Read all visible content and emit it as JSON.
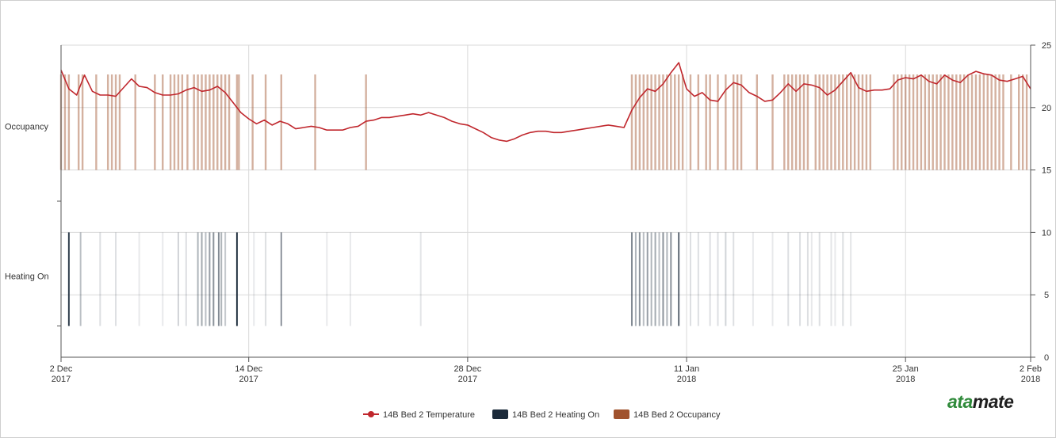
{
  "chart_data": {
    "type": "line",
    "x_axis": {
      "type": "date",
      "range": [
        "2017-12-02",
        "2018-02-02"
      ],
      "ticks": [
        {
          "date": "2017-12-02",
          "label_line1": "2 Dec",
          "label_line2": "2017"
        },
        {
          "date": "2017-12-14",
          "label_line1": "14 Dec",
          "label_line2": "2017"
        },
        {
          "date": "2017-12-28",
          "label_line1": "28 Dec",
          "label_line2": "2017"
        },
        {
          "date": "2018-01-11",
          "label_line1": "11 Jan",
          "label_line2": "2018"
        },
        {
          "date": "2018-01-25",
          "label_line1": "25 Jan",
          "label_line2": "2018"
        },
        {
          "date": "2018-02-02",
          "label_line1": "2 Feb",
          "label_line2": "2018"
        }
      ]
    },
    "y_axis_right": {
      "range": [
        0,
        25
      ],
      "ticks": [
        "0",
        "5",
        "10",
        "15",
        "20",
        "25"
      ]
    },
    "y_axis_left": {
      "categories": [
        "Occupancy",
        "Heating On"
      ]
    },
    "grid": true,
    "legend_position": "bottom-center",
    "series": [
      {
        "name": "14B Bed 2 Temperature",
        "kind": "line",
        "color": "#c0272d",
        "points": [
          [
            "2017-12-02",
            23.0
          ],
          [
            "2017-12-02T12",
            21.5
          ],
          [
            "2017-12-03",
            21.0
          ],
          [
            "2017-12-03T12",
            22.6
          ],
          [
            "2017-12-04",
            21.3
          ],
          [
            "2017-12-04T12",
            21.0
          ],
          [
            "2017-12-05",
            21.0
          ],
          [
            "2017-12-05T12",
            20.9
          ],
          [
            "2017-12-06",
            21.6
          ],
          [
            "2017-12-06T12",
            22.3
          ],
          [
            "2017-12-07",
            21.7
          ],
          [
            "2017-12-07T12",
            21.6
          ],
          [
            "2017-12-08",
            21.2
          ],
          [
            "2017-12-08T12",
            21.0
          ],
          [
            "2017-12-09",
            21.0
          ],
          [
            "2017-12-09T12",
            21.1
          ],
          [
            "2017-12-10",
            21.4
          ],
          [
            "2017-12-10T12",
            21.6
          ],
          [
            "2017-12-11",
            21.3
          ],
          [
            "2017-12-11T12",
            21.4
          ],
          [
            "2017-12-12",
            21.7
          ],
          [
            "2017-12-12T12",
            21.2
          ],
          [
            "2017-12-13",
            20.4
          ],
          [
            "2017-12-13T12",
            19.6
          ],
          [
            "2017-12-14",
            19.1
          ],
          [
            "2017-12-14T12",
            18.7
          ],
          [
            "2017-12-15",
            19.0
          ],
          [
            "2017-12-15T12",
            18.6
          ],
          [
            "2017-12-16",
            18.9
          ],
          [
            "2017-12-16T12",
            18.7
          ],
          [
            "2017-12-17",
            18.3
          ],
          [
            "2017-12-17T12",
            18.4
          ],
          [
            "2017-12-18",
            18.5
          ],
          [
            "2017-12-18T12",
            18.4
          ],
          [
            "2017-12-19",
            18.2
          ],
          [
            "2017-12-19T12",
            18.2
          ],
          [
            "2017-12-20",
            18.2
          ],
          [
            "2017-12-20T12",
            18.4
          ],
          [
            "2017-12-21",
            18.5
          ],
          [
            "2017-12-21T12",
            18.9
          ],
          [
            "2017-12-22",
            19.0
          ],
          [
            "2017-12-22T12",
            19.2
          ],
          [
            "2017-12-23",
            19.2
          ],
          [
            "2017-12-23T12",
            19.3
          ],
          [
            "2017-12-24",
            19.4
          ],
          [
            "2017-12-24T12",
            19.5
          ],
          [
            "2017-12-25",
            19.4
          ],
          [
            "2017-12-25T12",
            19.6
          ],
          [
            "2017-12-26",
            19.4
          ],
          [
            "2017-12-26T12",
            19.2
          ],
          [
            "2017-12-27",
            18.9
          ],
          [
            "2017-12-27T12",
            18.7
          ],
          [
            "2017-12-28",
            18.6
          ],
          [
            "2017-12-28T12",
            18.3
          ],
          [
            "2017-12-29",
            18.0
          ],
          [
            "2017-12-29T12",
            17.6
          ],
          [
            "2017-12-30",
            17.4
          ],
          [
            "2017-12-30T12",
            17.3
          ],
          [
            "2017-12-31",
            17.5
          ],
          [
            "2017-12-31T12",
            17.8
          ],
          [
            "2018-01-01",
            18.0
          ],
          [
            "2018-01-01T12",
            18.1
          ],
          [
            "2018-01-02",
            18.1
          ],
          [
            "2018-01-02T12",
            18.0
          ],
          [
            "2018-01-03",
            18.0
          ],
          [
            "2018-01-03T12",
            18.1
          ],
          [
            "2018-01-04",
            18.2
          ],
          [
            "2018-01-04T12",
            18.3
          ],
          [
            "2018-01-05",
            18.4
          ],
          [
            "2018-01-05T12",
            18.5
          ],
          [
            "2018-01-06",
            18.6
          ],
          [
            "2018-01-06T12",
            18.5
          ],
          [
            "2018-01-07",
            18.4
          ],
          [
            "2018-01-07T12",
            19.8
          ],
          [
            "2018-01-08",
            20.8
          ],
          [
            "2018-01-08T12",
            21.5
          ],
          [
            "2018-01-09",
            21.3
          ],
          [
            "2018-01-09T12",
            21.9
          ],
          [
            "2018-01-10",
            22.8
          ],
          [
            "2018-01-10T12",
            23.6
          ],
          [
            "2018-01-11",
            21.5
          ],
          [
            "2018-01-11T12",
            20.9
          ],
          [
            "2018-01-12",
            21.2
          ],
          [
            "2018-01-12T12",
            20.6
          ],
          [
            "2018-01-13",
            20.5
          ],
          [
            "2018-01-13T12",
            21.4
          ],
          [
            "2018-01-14",
            22.0
          ],
          [
            "2018-01-14T12",
            21.8
          ],
          [
            "2018-01-15",
            21.2
          ],
          [
            "2018-01-15T12",
            20.9
          ],
          [
            "2018-01-16",
            20.5
          ],
          [
            "2018-01-16T12",
            20.6
          ],
          [
            "2018-01-17",
            21.2
          ],
          [
            "2018-01-17T12",
            21.9
          ],
          [
            "2018-01-18",
            21.3
          ],
          [
            "2018-01-18T12",
            21.9
          ],
          [
            "2018-01-19",
            21.8
          ],
          [
            "2018-01-19T12",
            21.6
          ],
          [
            "2018-01-20",
            21.0
          ],
          [
            "2018-01-20T12",
            21.4
          ],
          [
            "2018-01-21",
            22.1
          ],
          [
            "2018-01-21T12",
            22.8
          ],
          [
            "2018-01-22",
            21.6
          ],
          [
            "2018-01-22T12",
            21.3
          ],
          [
            "2018-01-23",
            21.4
          ],
          [
            "2018-01-23T12",
            21.4
          ],
          [
            "2018-01-24",
            21.5
          ],
          [
            "2018-01-24T12",
            22.2
          ],
          [
            "2018-01-25",
            22.4
          ],
          [
            "2018-01-25T12",
            22.3
          ],
          [
            "2018-01-26",
            22.6
          ],
          [
            "2018-01-26T12",
            22.1
          ],
          [
            "2018-01-27",
            21.9
          ],
          [
            "2018-01-27T12",
            22.6
          ],
          [
            "2018-01-28",
            22.2
          ],
          [
            "2018-01-28T12",
            22.0
          ],
          [
            "2018-01-29",
            22.6
          ],
          [
            "2018-01-29T12",
            22.9
          ],
          [
            "2018-01-30",
            22.7
          ],
          [
            "2018-01-30T12",
            22.6
          ],
          [
            "2018-01-31",
            22.2
          ],
          [
            "2018-01-31T12",
            22.1
          ],
          [
            "2018-02-01",
            22.3
          ],
          [
            "2018-02-01T12",
            22.5
          ],
          [
            "2018-02-02",
            21.5
          ]
        ]
      },
      {
        "name": "14B Bed 2 Heating On",
        "kind": "event-lines",
        "color": "#1b2a3a",
        "events": [
          {
            "date": "2017-12-02T12",
            "strength": 0.9
          },
          {
            "date": "2017-12-03T06",
            "strength": 0.3
          },
          {
            "date": "2017-12-04T12",
            "strength": 0.15
          },
          {
            "date": "2017-12-05T12",
            "strength": 0.15
          },
          {
            "date": "2017-12-07",
            "strength": 0.1
          },
          {
            "date": "2017-12-08T12",
            "strength": 0.1
          },
          {
            "date": "2017-12-09T12",
            "strength": 0.2
          },
          {
            "date": "2017-12-10",
            "strength": 0.15
          },
          {
            "date": "2017-12-10T18",
            "strength": 0.35
          },
          {
            "date": "2017-12-11",
            "strength": 0.4
          },
          {
            "date": "2017-12-11T06",
            "strength": 0.3
          },
          {
            "date": "2017-12-11T12",
            "strength": 0.45
          },
          {
            "date": "2017-12-11T18",
            "strength": 0.5
          },
          {
            "date": "2017-12-12T02",
            "strength": 0.55
          },
          {
            "date": "2017-12-12T06",
            "strength": 0.35
          },
          {
            "date": "2017-12-12T12",
            "strength": 0.25
          },
          {
            "date": "2017-12-13T06",
            "strength": 0.95
          },
          {
            "date": "2017-12-14T08",
            "strength": 0.1
          },
          {
            "date": "2017-12-15T02",
            "strength": 0.15
          },
          {
            "date": "2017-12-16T02",
            "strength": 0.5
          },
          {
            "date": "2017-12-19",
            "strength": 0.1
          },
          {
            "date": "2017-12-20T12",
            "strength": 0.1
          },
          {
            "date": "2017-12-25",
            "strength": 0.12
          },
          {
            "date": "2018-01-07T12",
            "strength": 0.55
          },
          {
            "date": "2018-01-07T18",
            "strength": 0.35
          },
          {
            "date": "2018-01-08",
            "strength": 0.5
          },
          {
            "date": "2018-01-08T06",
            "strength": 0.3
          },
          {
            "date": "2018-01-08T12",
            "strength": 0.45
          },
          {
            "date": "2018-01-08T18",
            "strength": 0.35
          },
          {
            "date": "2018-01-09",
            "strength": 0.4
          },
          {
            "date": "2018-01-09T06",
            "strength": 0.3
          },
          {
            "date": "2018-01-09T12",
            "strength": 0.5
          },
          {
            "date": "2018-01-09T18",
            "strength": 0.35
          },
          {
            "date": "2018-01-10",
            "strength": 0.5
          },
          {
            "date": "2018-01-10T12",
            "strength": 0.7
          },
          {
            "date": "2018-01-11T06",
            "strength": 0.15
          },
          {
            "date": "2018-01-11T18",
            "strength": 0.15
          },
          {
            "date": "2018-01-12T12",
            "strength": 0.15
          },
          {
            "date": "2018-01-13",
            "strength": 0.15
          },
          {
            "date": "2018-01-13T12",
            "strength": 0.2
          },
          {
            "date": "2018-01-14",
            "strength": 0.15
          },
          {
            "date": "2018-01-15T06",
            "strength": 0.1
          },
          {
            "date": "2018-01-16T12",
            "strength": 0.1
          },
          {
            "date": "2018-01-17T12",
            "strength": 0.15
          },
          {
            "date": "2018-01-18T06",
            "strength": 0.15
          },
          {
            "date": "2018-01-18T18",
            "strength": 0.15
          },
          {
            "date": "2018-01-19",
            "strength": 0.1
          },
          {
            "date": "2018-01-19T12",
            "strength": 0.15
          },
          {
            "date": "2018-01-20T06",
            "strength": 0.12
          },
          {
            "date": "2018-01-20T12",
            "strength": 0.1
          },
          {
            "date": "2018-01-21",
            "strength": 0.15
          },
          {
            "date": "2018-01-21T12",
            "strength": 0.12
          }
        ]
      },
      {
        "name": "14B Bed 2 Occupancy",
        "kind": "event-lines",
        "color": "#a0522d",
        "events": [
          "2017-12-02",
          "2017-12-02T06",
          "2017-12-02T12",
          "2017-12-03T03",
          "2017-12-03T09",
          "2017-12-04T06",
          "2017-12-05",
          "2017-12-05T06",
          "2017-12-05T12",
          "2017-12-05T18",
          "2017-12-06T18",
          "2017-12-08",
          "2017-12-08T12",
          "2017-12-09",
          "2017-12-09T06",
          "2017-12-09T12",
          "2017-12-09T18",
          "2017-12-10T02",
          "2017-12-10T12",
          "2017-12-10T18",
          "2017-12-11",
          "2017-12-11T06",
          "2017-12-11T12",
          "2017-12-11T18",
          "2017-12-12",
          "2017-12-12T06",
          "2017-12-12T12",
          "2017-12-12T18",
          "2017-12-13T06",
          "2017-12-13T09",
          "2017-12-14T06",
          "2017-12-15T02",
          "2017-12-16T02",
          "2017-12-18T06",
          "2017-12-21T12",
          "2018-01-07T12",
          "2018-01-07T18",
          "2018-01-08",
          "2018-01-08T06",
          "2018-01-08T12",
          "2018-01-08T18",
          "2018-01-09",
          "2018-01-09T06",
          "2018-01-09T12",
          "2018-01-09T18",
          "2018-01-10",
          "2018-01-10T06",
          "2018-01-10T12",
          "2018-01-10T18",
          "2018-01-11T06",
          "2018-01-11T18",
          "2018-01-12T06",
          "2018-01-12T12",
          "2018-01-13",
          "2018-01-13T12",
          "2018-01-14",
          "2018-01-14T06",
          "2018-01-14T12",
          "2018-01-15T12",
          "2018-01-16T12",
          "2018-01-17T06",
          "2018-01-17T12",
          "2018-01-17T18",
          "2018-01-18",
          "2018-01-18T06",
          "2018-01-18T12",
          "2018-01-18T18",
          "2018-01-19T06",
          "2018-01-19T12",
          "2018-01-19T18",
          "2018-01-20",
          "2018-01-20T06",
          "2018-01-20T12",
          "2018-01-20T18",
          "2018-01-21",
          "2018-01-21T06",
          "2018-01-21T12",
          "2018-01-21T18",
          "2018-01-22",
          "2018-01-22T06",
          "2018-01-22T12",
          "2018-01-22T18",
          "2018-01-24T06",
          "2018-01-24T12",
          "2018-01-24T18",
          "2018-01-25",
          "2018-01-25T06",
          "2018-01-25T12",
          "2018-01-25T18",
          "2018-01-26",
          "2018-01-26T06",
          "2018-01-26T12",
          "2018-01-26T18",
          "2018-01-27",
          "2018-01-27T06",
          "2018-01-27T12",
          "2018-01-27T18",
          "2018-01-28",
          "2018-01-28T06",
          "2018-01-28T12",
          "2018-01-28T18",
          "2018-01-29",
          "2018-01-29T06",
          "2018-01-29T12",
          "2018-01-29T18",
          "2018-01-30",
          "2018-01-30T06",
          "2018-01-30T12",
          "2018-01-30T18",
          "2018-01-31",
          "2018-01-31T06",
          "2018-01-31T18",
          "2018-02-01T06",
          "2018-02-01T12",
          "2018-02-01T18"
        ]
      }
    ]
  },
  "logo": {
    "part1": "ata",
    "part2": "mate"
  }
}
